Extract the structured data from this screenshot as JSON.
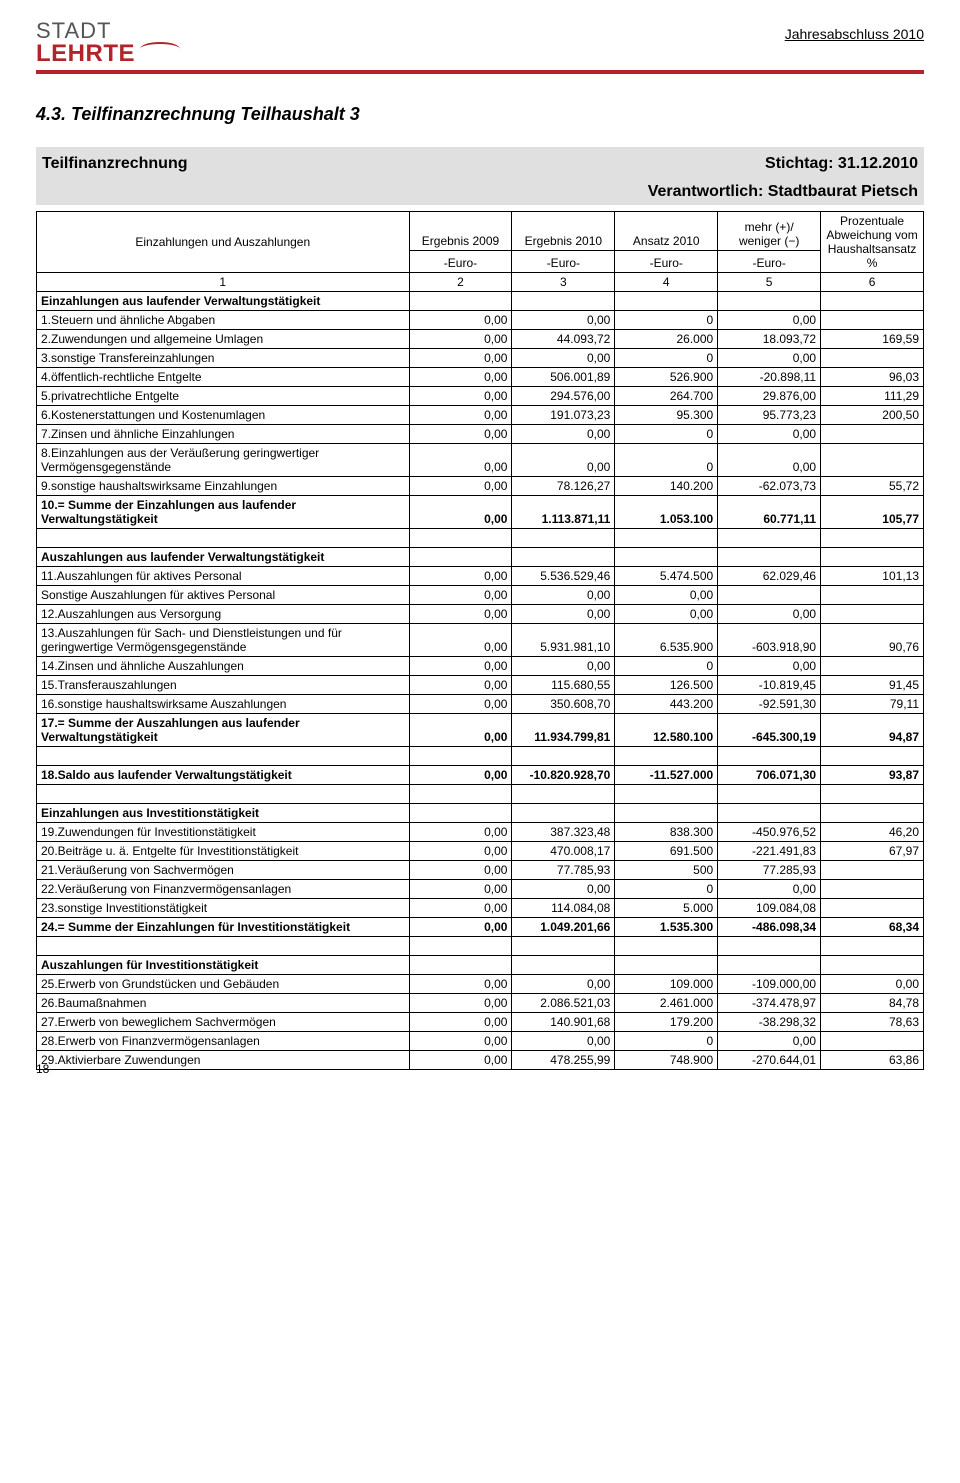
{
  "header": {
    "logo_top": "STADT",
    "logo_bottom": "LEHRTE",
    "doc_title": "Jahresabschluss 2010"
  },
  "section": {
    "number_title": "4.3.  Teilfinanzrechnung Teilhaushalt 3",
    "sub_left": "Teilfinanzrechnung",
    "sub_right": "Stichtag: 31.12.2010",
    "responsible": "Verantwortlich: Stadtbaurat Pietsch"
  },
  "table": {
    "head": {
      "c1a": "Einzahlungen und Auszahlungen",
      "c2a": "Ergebnis 2009",
      "c3a": "Ergebnis 2010",
      "c4a": "Ansatz 2010",
      "c5a": "mehr (+)/ weniger (−)",
      "c6a": "Prozentuale Abweichung vom Haushaltsansatz %",
      "unit": "-Euro-",
      "n1": "1",
      "n2": "2",
      "n3": "3",
      "n4": "4",
      "n5": "5",
      "n6": "6"
    },
    "rows": [
      {
        "type": "section",
        "label": "Einzahlungen aus laufender Verwaltungstätigkeit"
      },
      {
        "type": "row",
        "label": "1.Steuern und ähnliche Abgaben",
        "c2": "0,00",
        "c3": "0,00",
        "c4": "0",
        "c5": "0,00",
        "c6": ""
      },
      {
        "type": "row",
        "label": "2.Zuwendungen und allgemeine Umlagen",
        "c2": "0,00",
        "c3": "44.093,72",
        "c4": "26.000",
        "c5": "18.093,72",
        "c6": "169,59"
      },
      {
        "type": "row",
        "label": "3.sonstige Transfereinzahlungen",
        "c2": "0,00",
        "c3": "0,00",
        "c4": "0",
        "c5": "0,00",
        "c6": ""
      },
      {
        "type": "row",
        "label": "4.öffentlich-rechtliche Entgelte",
        "c2": "0,00",
        "c3": "506.001,89",
        "c4": "526.900",
        "c5": "-20.898,11",
        "c6": "96,03"
      },
      {
        "type": "row",
        "label": "5.privatrechtliche Entgelte",
        "c2": "0,00",
        "c3": "294.576,00",
        "c4": "264.700",
        "c5": "29.876,00",
        "c6": "111,29"
      },
      {
        "type": "row",
        "label": "6.Kostenerstattungen und Kostenumlagen",
        "c2": "0,00",
        "c3": "191.073,23",
        "c4": "95.300",
        "c5": "95.773,23",
        "c6": "200,50"
      },
      {
        "type": "row",
        "label": "7.Zinsen und ähnliche Einzahlungen",
        "c2": "0,00",
        "c3": "0,00",
        "c4": "0",
        "c5": "0,00",
        "c6": ""
      },
      {
        "type": "row",
        "label": "8.Einzahlungen aus der Veräußerung geringwertiger Vermögensgegenstände",
        "c2": "0,00",
        "c3": "0,00",
        "c4": "0",
        "c5": "0,00",
        "c6": ""
      },
      {
        "type": "row",
        "label": "9.sonstige haushaltswirksame Einzahlungen",
        "c2": "0,00",
        "c3": "78.126,27",
        "c4": "140.200",
        "c5": "-62.073,73",
        "c6": "55,72"
      },
      {
        "type": "bold",
        "label": "10.= Summe der Einzahlungen aus laufender Verwaltungstätigkeit",
        "c2": "0,00",
        "c3": "1.113.871,11",
        "c4": "1.053.100",
        "c5": "60.771,11",
        "c6": "105,77"
      },
      {
        "type": "blank"
      },
      {
        "type": "section",
        "label": "Auszahlungen aus laufender Verwaltungstätigkeit"
      },
      {
        "type": "row",
        "label": "11.Auszahlungen für aktives Personal",
        "c2": "0,00",
        "c3": "5.536.529,46",
        "c4": "5.474.500",
        "c5": "62.029,46",
        "c6": "101,13"
      },
      {
        "type": "row",
        "label": "Sonstige Auszahlungen für aktives Personal",
        "c2": "0,00",
        "c3": "0,00",
        "c4": "0,00",
        "c5": "",
        "c6": ""
      },
      {
        "type": "row",
        "label": "12.Auszahlungen aus Versorgung",
        "c2": "0,00",
        "c3": "0,00",
        "c4": "0,00",
        "c5": "0,00",
        "c6": ""
      },
      {
        "type": "row",
        "label": "13.Auszahlungen für Sach- und Dienstleistungen und für geringwertige Vermögensgegenstände",
        "c2": "0,00",
        "c3": "5.931.981,10",
        "c4": "6.535.900",
        "c5": "-603.918,90",
        "c6": "90,76"
      },
      {
        "type": "row",
        "label": "14.Zinsen und ähnliche Auszahlungen",
        "c2": "0,00",
        "c3": "0,00",
        "c4": "0",
        "c5": "0,00",
        "c6": ""
      },
      {
        "type": "row",
        "label": "15.Transferauszahlungen",
        "c2": "0,00",
        "c3": "115.680,55",
        "c4": "126.500",
        "c5": "-10.819,45",
        "c6": "91,45"
      },
      {
        "type": "row",
        "label": "16.sonstige haushaltswirksame Auszahlungen",
        "c2": "0,00",
        "c3": "350.608,70",
        "c4": "443.200",
        "c5": "-92.591,30",
        "c6": "79,11"
      },
      {
        "type": "bold",
        "label": "17.= Summe der Auszahlungen aus laufender Verwaltungstätigkeit",
        "c2": "0,00",
        "c3": "11.934.799,81",
        "c4": "12.580.100",
        "c5": "-645.300,19",
        "c6": "94,87"
      },
      {
        "type": "blank"
      },
      {
        "type": "bold",
        "label": "18.Saldo aus laufender Verwaltungstätigkeit",
        "c2": "0,00",
        "c3": "-10.820.928,70",
        "c4": "-11.527.000",
        "c5": "706.071,30",
        "c6": "93,87"
      },
      {
        "type": "blank"
      },
      {
        "type": "section",
        "label": "Einzahlungen aus Investitionstätigkeit"
      },
      {
        "type": "row",
        "label": "19.Zuwendungen für Investitionstätigkeit",
        "c2": "0,00",
        "c3": "387.323,48",
        "c4": "838.300",
        "c5": "-450.976,52",
        "c6": "46,20"
      },
      {
        "type": "row",
        "label": "20.Beiträge u. ä. Entgelte für Investitionstätigkeit",
        "c2": "0,00",
        "c3": "470.008,17",
        "c4": "691.500",
        "c5": "-221.491,83",
        "c6": "67,97"
      },
      {
        "type": "row",
        "label": "21.Veräußerung von Sachvermögen",
        "c2": "0,00",
        "c3": "77.785,93",
        "c4": "500",
        "c5": "77.285,93",
        "c6": ""
      },
      {
        "type": "row",
        "label": "22.Veräußerung von Finanzvermögensanlagen",
        "c2": "0,00",
        "c3": "0,00",
        "c4": "0",
        "c5": "0,00",
        "c6": ""
      },
      {
        "type": "row",
        "label": "23.sonstige Investitionstätigkeit",
        "c2": "0,00",
        "c3": "114.084,08",
        "c4": "5.000",
        "c5": "109.084,08",
        "c6": ""
      },
      {
        "type": "bold",
        "label": "24.= Summe der Einzahlungen für Investitionstätigkeit",
        "c2": "0,00",
        "c3": "1.049.201,66",
        "c4": "1.535.300",
        "c5": "-486.098,34",
        "c6": "68,34"
      },
      {
        "type": "blank"
      },
      {
        "type": "section",
        "label": "Auszahlungen für Investitionstätigkeit"
      },
      {
        "type": "row",
        "label": "25.Erwerb von Grundstücken und Gebäuden",
        "c2": "0,00",
        "c3": "0,00",
        "c4": "109.000",
        "c5": "-109.000,00",
        "c6": "0,00"
      },
      {
        "type": "row",
        "label": "26.Baumaßnahmen",
        "c2": "0,00",
        "c3": "2.086.521,03",
        "c4": "2.461.000",
        "c5": "-374.478,97",
        "c6": "84,78"
      },
      {
        "type": "row",
        "label": "27.Erwerb von beweglichem Sachvermögen",
        "c2": "0,00",
        "c3": "140.901,68",
        "c4": "179.200",
        "c5": "-38.298,32",
        "c6": "78,63"
      },
      {
        "type": "row",
        "label": "28.Erwerb von Finanzvermögensanlagen",
        "c2": "0,00",
        "c3": "0,00",
        "c4": "0",
        "c5": "0,00",
        "c6": ""
      },
      {
        "type": "row",
        "label": "29.Aktivierbare Zuwendungen",
        "c2": "0,00",
        "c3": "478.255,99",
        "c4": "748.900",
        "c5": "-270.644,01",
        "c6": "63,86"
      }
    ]
  },
  "pagenum": "18",
  "style": {
    "accent": "#b4232a",
    "grey": "#e0e0e0",
    "border": "#000000",
    "font_base": 12,
    "font_title": 18,
    "font_sub": 16,
    "col_widths_pct": [
      42,
      11.6,
      11.6,
      11.6,
      11.6,
      11.6
    ]
  }
}
